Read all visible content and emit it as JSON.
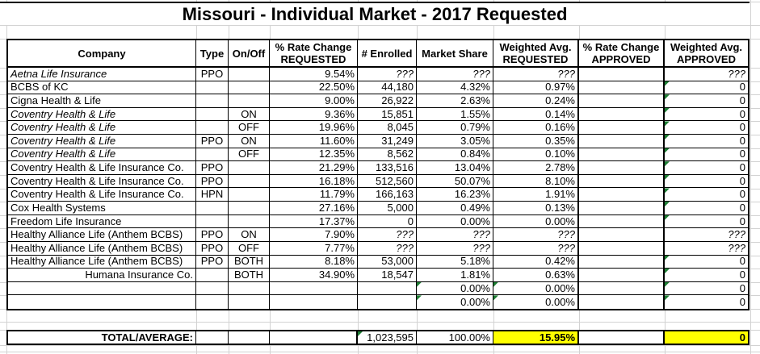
{
  "title": "Missouri - Individual Market - 2017 Requested",
  "colors": {
    "highlight": "#ffff00",
    "error_flag_green": "#1e7e34",
    "gridline": "#d2d2d2",
    "border": "#000000"
  },
  "table": {
    "headers": [
      "Company",
      "Type",
      "On/Off",
      "% Rate Change\nREQUESTED",
      "# Enrolled",
      "Market Share",
      "Weighted Avg.\nREQUESTED",
      "% Rate Change\nAPPROVED",
      "Weighted Avg.\nAPPROVED"
    ],
    "rows": [
      {
        "company": "Aetna Life Insurance",
        "type": "PPO",
        "on_off": "",
        "rate_change_requested": "9.54%",
        "enrolled": "???",
        "market_share": "???",
        "weighted_avg_requested": "???",
        "rate_change_approved": "",
        "weighted_avg_approved": "???",
        "company_italic": true,
        "values_italic": true,
        "flags": []
      },
      {
        "company": "BCBS of KC",
        "type": "",
        "on_off": "",
        "rate_change_requested": "22.50%",
        "enrolled": "44,180",
        "market_share": "4.32%",
        "weighted_avg_requested": "0.97%",
        "rate_change_approved": "",
        "weighted_avg_approved": "0",
        "flags": [
          "weighted_avg_approved"
        ]
      },
      {
        "company": "Cigna Health & Life",
        "type": "",
        "on_off": "",
        "rate_change_requested": "9.00%",
        "enrolled": "26,922",
        "market_share": "2.63%",
        "weighted_avg_requested": "0.24%",
        "rate_change_approved": "",
        "weighted_avg_approved": "0",
        "flags": [
          "weighted_avg_approved"
        ]
      },
      {
        "company": "Coventry Health & Life",
        "type": "",
        "on_off": "ON",
        "rate_change_requested": "9.36%",
        "enrolled": "15,851",
        "market_share": "1.55%",
        "weighted_avg_requested": "0.14%",
        "rate_change_approved": "",
        "weighted_avg_approved": "0",
        "company_italic": true,
        "flags": [
          "weighted_avg_approved"
        ]
      },
      {
        "company": "Coventry Health & Life",
        "type": "",
        "on_off": "OFF",
        "rate_change_requested": "19.96%",
        "enrolled": "8,045",
        "market_share": "0.79%",
        "weighted_avg_requested": "0.16%",
        "rate_change_approved": "",
        "weighted_avg_approved": "0",
        "company_italic": true,
        "flags": [
          "weighted_avg_approved"
        ]
      },
      {
        "company": "Coventry Health & Life",
        "type": "PPO",
        "on_off": "ON",
        "rate_change_requested": "11.60%",
        "enrolled": "31,249",
        "market_share": "3.05%",
        "weighted_avg_requested": "0.35%",
        "rate_change_approved": "",
        "weighted_avg_approved": "0",
        "company_italic": true,
        "flags": [
          "weighted_avg_approved"
        ]
      },
      {
        "company": "Coventry Health & Life",
        "type": "",
        "on_off": "OFF",
        "rate_change_requested": "12.35%",
        "enrolled": "8,562",
        "market_share": "0.84%",
        "weighted_avg_requested": "0.10%",
        "rate_change_approved": "",
        "weighted_avg_approved": "0",
        "company_italic": true,
        "flags": [
          "weighted_avg_approved"
        ]
      },
      {
        "company": "Coventry Health & Life Insurance Co.",
        "type": "PPO",
        "on_off": "",
        "rate_change_requested": "21.29%",
        "enrolled": "133,516",
        "market_share": "13.04%",
        "weighted_avg_requested": "2.78%",
        "rate_change_approved": "",
        "weighted_avg_approved": "0",
        "flags": [
          "weighted_avg_approved"
        ]
      },
      {
        "company": "Coventry Health & Life Insurance Co.",
        "type": "PPO",
        "on_off": "",
        "rate_change_requested": "16.18%",
        "enrolled": "512,560",
        "market_share": "50.07%",
        "weighted_avg_requested": "8.10%",
        "rate_change_approved": "",
        "weighted_avg_approved": "0",
        "flags": [
          "weighted_avg_approved"
        ]
      },
      {
        "company": "Coventry Health & Life Insurance Co.",
        "type": "HPN",
        "on_off": "",
        "rate_change_requested": "11.79%",
        "enrolled": "166,163",
        "market_share": "16.23%",
        "weighted_avg_requested": "1.91%",
        "rate_change_approved": "",
        "weighted_avg_approved": "0",
        "flags": [
          "weighted_avg_approved"
        ]
      },
      {
        "company": "Cox Health Systems",
        "type": "",
        "on_off": "",
        "rate_change_requested": "27.16%",
        "enrolled": "5,000",
        "market_share": "0.49%",
        "weighted_avg_requested": "0.13%",
        "rate_change_approved": "",
        "weighted_avg_approved": "0",
        "flags": [
          "weighted_avg_approved"
        ]
      },
      {
        "company": "Freedom Life Insurance",
        "type": "",
        "on_off": "",
        "rate_change_requested": "17.37%",
        "enrolled": "0",
        "market_share": "0.00%",
        "weighted_avg_requested": "0.00%",
        "rate_change_approved": "",
        "weighted_avg_approved": "0",
        "flags": [
          "weighted_avg_approved"
        ]
      },
      {
        "company": "Healthy Alliance Life (Anthem BCBS)",
        "type": "PPO",
        "on_off": "ON",
        "rate_change_requested": "7.90%",
        "enrolled": "???",
        "market_share": "???",
        "weighted_avg_requested": "???",
        "rate_change_approved": "",
        "weighted_avg_approved": "???",
        "values_italic": true,
        "flags": []
      },
      {
        "company": "Healthy Alliance Life (Anthem BCBS)",
        "type": "PPO",
        "on_off": "OFF",
        "rate_change_requested": "7.77%",
        "enrolled": "???",
        "market_share": "???",
        "weighted_avg_requested": "???",
        "rate_change_approved": "",
        "weighted_avg_approved": "???",
        "values_italic": true,
        "flags": []
      },
      {
        "company": "Healthy Alliance Life (Anthem BCBS)",
        "type": "PPO",
        "on_off": "BOTH",
        "rate_change_requested": "8.18%",
        "enrolled": "53,000",
        "market_share": "5.18%",
        "weighted_avg_requested": "0.42%",
        "rate_change_approved": "",
        "weighted_avg_approved": "0",
        "flags": [
          "weighted_avg_approved"
        ]
      },
      {
        "company": "Humana Insurance Co.",
        "type": "",
        "on_off": "BOTH",
        "rate_change_requested": "34.90%",
        "enrolled": "18,547",
        "market_share": "1.81%",
        "weighted_avg_requested": "0.63%",
        "rate_change_approved": "",
        "weighted_avg_approved": "0",
        "company_align": "right",
        "flags": [
          "weighted_avg_approved"
        ]
      },
      {
        "company": "",
        "type": "",
        "on_off": "",
        "rate_change_requested": "",
        "enrolled": "",
        "market_share": "0.00%",
        "weighted_avg_requested": "0.00%",
        "rate_change_approved": "",
        "weighted_avg_approved": "0",
        "flags": [
          "market_share",
          "weighted_avg_requested",
          "weighted_avg_approved"
        ]
      },
      {
        "company": "",
        "type": "",
        "on_off": "",
        "rate_change_requested": "",
        "enrolled": "",
        "market_share": "0.00%",
        "weighted_avg_requested": "0.00%",
        "rate_change_approved": "",
        "weighted_avg_approved": "0",
        "flags": [
          "market_share",
          "weighted_avg_requested",
          "weighted_avg_approved"
        ]
      }
    ]
  },
  "total": {
    "label": "TOTAL/AVERAGE:",
    "type": "",
    "on_off": "",
    "rate_change_requested": "",
    "enrolled": "1,023,595",
    "market_share": "100.00%",
    "weighted_avg_requested": "15.95%",
    "rate_change_approved": "",
    "weighted_avg_approved": "0",
    "flags": [
      "enrolled"
    ]
  }
}
